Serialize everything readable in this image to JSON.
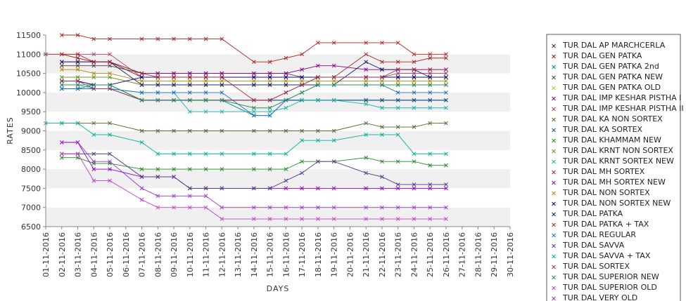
{
  "chart_data": {
    "type": "line",
    "xlabel": "DAYS",
    "ylabel": "RATES",
    "ylim": [
      6500,
      11500
    ],
    "yticks": [
      6500,
      7000,
      7500,
      8000,
      8500,
      9000,
      9500,
      10000,
      10500,
      11000,
      11500
    ],
    "grid": "alternating horizontal bands",
    "legend_position": "right",
    "x": [
      "01-11-2016",
      "02-11-2016",
      "03-11-2016",
      "04-11-2016",
      "05-11-2016",
      "06-11-2016",
      "07-11-2016",
      "08-11-2016",
      "09-11-2016",
      "10-11-2016",
      "11-11-2016",
      "12-11-2016",
      "13-11-2016",
      "14-11-2016",
      "15-11-2016",
      "16-11-2016",
      "17-11-2016",
      "18-11-2016",
      "19-11-2016",
      "20-11-2016",
      "21-11-2016",
      "22-11-2016",
      "23-11-2016",
      "24-11-2016",
      "25-11-2016",
      "26-11-2016",
      "27-11-2016",
      "28-11-2016",
      "29-11-2016",
      "30-11-2016"
    ],
    "series": [
      {
        "name": "TUR DAL AP MARCHCERLA",
        "color": "#333333",
        "values": [
          null,
          10300,
          10300,
          10200,
          10200,
          null,
          9800,
          9800,
          9800,
          9800,
          9800,
          9800,
          null,
          9800,
          9800,
          9800,
          9800,
          9800,
          9800,
          null,
          9800,
          9800,
          9800,
          9800,
          9800,
          9800,
          null,
          null,
          null,
          null
        ]
      },
      {
        "name": "TUR DAL GEN PATKA",
        "color": "#8b1a1a",
        "values": [
          11000,
          11000,
          10900,
          10800,
          10800,
          null,
          10400,
          10400,
          10400,
          10400,
          10400,
          10400,
          null,
          10400,
          10400,
          10400,
          10400,
          10400,
          10400,
          null,
          10400,
          10400,
          10400,
          10400,
          10400,
          10400,
          null,
          null,
          null,
          null
        ]
      },
      {
        "name": "TUR DAL GEN PATKA 2nd",
        "color": "#008b8b",
        "values": [
          null,
          10100,
          10100,
          10200,
          10200,
          null,
          9800,
          9800,
          9800,
          9800,
          9800,
          9800,
          null,
          9400,
          9400,
          9800,
          9800,
          9800,
          9800,
          null,
          9800,
          9800,
          9800,
          9800,
          9800,
          9800,
          null,
          null,
          null,
          null
        ]
      },
      {
        "name": "TUR DAL GEN PATKA NEW",
        "color": "#4b3b3b",
        "values": [
          null,
          10700,
          10700,
          10700,
          10700,
          null,
          10500,
          10500,
          10500,
          10500,
          10500,
          10500,
          null,
          10500,
          10500,
          10500,
          10400,
          10400,
          10400,
          null,
          10400,
          10400,
          10400,
          10400,
          10400,
          10400,
          null,
          null,
          null,
          null
        ]
      },
      {
        "name": "TUR DAL GEN PATKA OLD",
        "color": "#9acd32",
        "values": [
          null,
          10400,
          10400,
          10400,
          10400,
          null,
          10200,
          10200,
          10200,
          10200,
          10200,
          10200,
          null,
          10200,
          10200,
          10200,
          10200,
          10200,
          10200,
          null,
          10200,
          10200,
          10200,
          10200,
          10200,
          10200,
          null,
          null,
          null,
          null
        ]
      },
      {
        "name": "TUR DAL IMP KESHAR PISTHA I",
        "color": "#8b008b",
        "values": [
          null,
          10800,
          10800,
          10800,
          10800,
          null,
          10500,
          10500,
          10500,
          10500,
          10500,
          10500,
          null,
          10500,
          10500,
          10500,
          10600,
          10700,
          10700,
          null,
          10600,
          10600,
          10600,
          10600,
          10600,
          10600,
          null,
          null,
          null,
          null
        ]
      },
      {
        "name": "TUR DAL IMP KESHAR PISTHA II",
        "color": "#a04070",
        "values": [
          11000,
          11000,
          11000,
          11000,
          11000,
          null,
          10400,
          10400,
          10400,
          10400,
          10400,
          10400,
          null,
          10400,
          10400,
          10400,
          10400,
          10400,
          10400,
          null,
          10400,
          10400,
          10500,
          10500,
          10500,
          10500,
          null,
          null,
          null,
          null
        ]
      },
      {
        "name": "TUR DAL KA NON SORTEX",
        "color": "#556b2f",
        "values": [
          null,
          9200,
          9200,
          9200,
          9200,
          null,
          9000,
          9000,
          9000,
          9000,
          9000,
          9000,
          null,
          9000,
          9000,
          9000,
          9000,
          9000,
          9000,
          null,
          9200,
          9100,
          9100,
          9100,
          9200,
          9200,
          null,
          null,
          null,
          null
        ]
      },
      {
        "name": "TUR DAL KA SORTEX",
        "color": "#104e8b",
        "values": [
          null,
          10100,
          10100,
          10100,
          10100,
          null,
          9800,
          9800,
          9800,
          9800,
          9800,
          9800,
          null,
          9800,
          9800,
          9800,
          9800,
          9800,
          9800,
          null,
          9800,
          9800,
          9800,
          9800,
          9800,
          9800,
          null,
          null,
          null,
          null
        ]
      },
      {
        "name": "TUR DAL KHAMMAM NEW",
        "color": "#228b22",
        "values": [
          null,
          8300,
          8300,
          8150,
          8150,
          null,
          8000,
          8000,
          8000,
          8000,
          8000,
          8000,
          null,
          8000,
          8000,
          8000,
          8200,
          8200,
          8200,
          null,
          8300,
          8200,
          8200,
          8200,
          8100,
          8100,
          null,
          null,
          null,
          null
        ]
      },
      {
        "name": "TUR DAL KRNT NON SORTEX",
        "color": "#6b8e23",
        "values": [
          null,
          10400,
          10400,
          10400,
          10400,
          null,
          10200,
          10200,
          10200,
          10200,
          10200,
          10200,
          null,
          10200,
          10200,
          10200,
          10200,
          10200,
          10200,
          null,
          10200,
          10200,
          10200,
          10200,
          10200,
          10200,
          null,
          null,
          null,
          null
        ]
      },
      {
        "name": "TUR DAL KRNT SORTEX NEW",
        "color": "#20b2aa",
        "values": [
          null,
          10200,
          10200,
          10100,
          10100,
          null,
          10000,
          10000,
          10000,
          9500,
          9500,
          9500,
          null,
          9500,
          9500,
          9600,
          9800,
          9800,
          9800,
          null,
          9700,
          9600,
          9600,
          9600,
          9600,
          9600,
          null,
          null,
          null,
          null
        ]
      },
      {
        "name": "TUR DAL MH SORTEX",
        "color": "#b22222",
        "values": [
          null,
          11500,
          11500,
          11400,
          11400,
          null,
          11400,
          11400,
          11400,
          11400,
          11400,
          11400,
          null,
          10800,
          10800,
          10900,
          11000,
          11300,
          11300,
          null,
          11300,
          11300,
          11300,
          11000,
          11000,
          11000,
          null,
          null,
          null,
          null
        ]
      },
      {
        "name": "TUR DAL MH SORTEX NEW",
        "color": "#9400d3",
        "values": [
          null,
          8700,
          8700,
          8000,
          8000,
          null,
          7800,
          7800,
          7800,
          7500,
          7500,
          7500,
          null,
          7500,
          7500,
          7500,
          7500,
          7500,
          7500,
          null,
          7500,
          7500,
          7500,
          7500,
          7500,
          7500,
          null,
          null,
          null,
          null
        ]
      },
      {
        "name": "TUR DAL NON SORTEX",
        "color": "#b8860b",
        "values": [
          null,
          10600,
          10600,
          10500,
          10500,
          null,
          10300,
          10300,
          10300,
          10300,
          10300,
          10300,
          null,
          10300,
          10300,
          10300,
          10300,
          10300,
          10300,
          null,
          10300,
          10300,
          10300,
          10300,
          10300,
          10300,
          null,
          null,
          null,
          null
        ]
      },
      {
        "name": "TUR DAL NON SORTEX NEW",
        "color": "#000080",
        "values": [
          null,
          10300,
          10300,
          10200,
          10200,
          null,
          10400,
          10400,
          10400,
          10400,
          10400,
          10400,
          null,
          10400,
          10400,
          10400,
          10400,
          10400,
          10400,
          null,
          10400,
          10400,
          10400,
          10400,
          10400,
          10400,
          null,
          null,
          null,
          null
        ]
      },
      {
        "name": "TUR DAL PATKA",
        "color": "#191970",
        "values": [
          null,
          10800,
          10800,
          10800,
          10800,
          null,
          10200,
          10200,
          10200,
          10200,
          10200,
          10200,
          null,
          10200,
          10200,
          10200,
          10200,
          10200,
          10200,
          null,
          10800,
          10600,
          10600,
          10600,
          10400,
          10400,
          null,
          null,
          null,
          null
        ]
      },
      {
        "name": "TUR DAL PATKA + TAX",
        "color": "#a52a2a",
        "values": [
          null,
          11000,
          11000,
          10800,
          10800,
          null,
          10500,
          10400,
          10400,
          10400,
          10400,
          10400,
          null,
          9800,
          9800,
          10000,
          10200,
          10400,
          10400,
          null,
          11000,
          10800,
          10800,
          10800,
          10900,
          10900,
          null,
          null,
          null,
          null
        ]
      },
      {
        "name": "TUR DAL REGULAR",
        "color": "#1e6fbf",
        "values": [
          null,
          10100,
          10100,
          10100,
          10100,
          null,
          10000,
          10000,
          10000,
          10000,
          10000,
          10000,
          null,
          9400,
          9400,
          9800,
          10000,
          10200,
          10200,
          null,
          10200,
          10200,
          10000,
          10000,
          10000,
          10000,
          null,
          null,
          null,
          null
        ]
      },
      {
        "name": "TUR DAL SAVVA",
        "color": "#4b3c8b",
        "values": [
          null,
          8400,
          8400,
          8400,
          8400,
          null,
          7800,
          7800,
          7800,
          7500,
          7500,
          7500,
          null,
          7500,
          7500,
          7700,
          7900,
          8200,
          8200,
          null,
          7900,
          7800,
          7600,
          7600,
          7600,
          7600,
          null,
          null,
          null,
          null
        ]
      },
      {
        "name": "TUR DAL SAVVA + TAX",
        "color": "#00b39b",
        "values": [
          9200,
          9200,
          9200,
          8900,
          8900,
          null,
          8700,
          8400,
          8400,
          8400,
          8400,
          8400,
          null,
          8400,
          8400,
          8400,
          8750,
          8750,
          8750,
          null,
          8900,
          8900,
          8900,
          8400,
          8400,
          8400,
          null,
          null,
          null,
          null
        ]
      },
      {
        "name": "TUR DAL SORTEX",
        "color": "#a0304f",
        "values": [
          null,
          10300,
          10300,
          10100,
          10100,
          null,
          9800,
          9800,
          9800,
          9800,
          9800,
          9800,
          null,
          9800,
          9800,
          10000,
          10200,
          10400,
          10400,
          null,
          10400,
          10400,
          10600,
          10600,
          10600,
          10600,
          null,
          null,
          null,
          null
        ]
      },
      {
        "name": "TUR DAL SUPERIOR NEW",
        "color": "#2e8b57",
        "values": [
          null,
          10200,
          10200,
          10200,
          10200,
          null,
          9800,
          9800,
          9800,
          9800,
          9800,
          9800,
          null,
          9600,
          9600,
          9800,
          10000,
          10200,
          10200,
          null,
          10200,
          10200,
          10200,
          10200,
          10200,
          10200,
          null,
          null,
          null,
          null
        ]
      },
      {
        "name": "TUR DAL SUPERIOR OLD",
        "color": "#c040c0",
        "values": [
          null,
          8400,
          8400,
          7700,
          7700,
          null,
          7200,
          7000,
          7000,
          7000,
          7000,
          6700,
          null,
          6700,
          6700,
          6700,
          6700,
          6700,
          6700,
          null,
          6700,
          6700,
          6700,
          6700,
          6700,
          6700,
          null,
          null,
          null,
          null
        ]
      },
      {
        "name": "TUR DAL VERY OLD",
        "color": "#9932cc",
        "values": [
          null,
          8700,
          8700,
          8200,
          8200,
          null,
          7500,
          7300,
          7300,
          7300,
          7300,
          7000,
          null,
          7000,
          7000,
          7000,
          7000,
          7000,
          7000,
          null,
          7000,
          7000,
          7000,
          7000,
          7000,
          7000,
          null,
          null,
          null,
          null
        ]
      }
    ]
  }
}
